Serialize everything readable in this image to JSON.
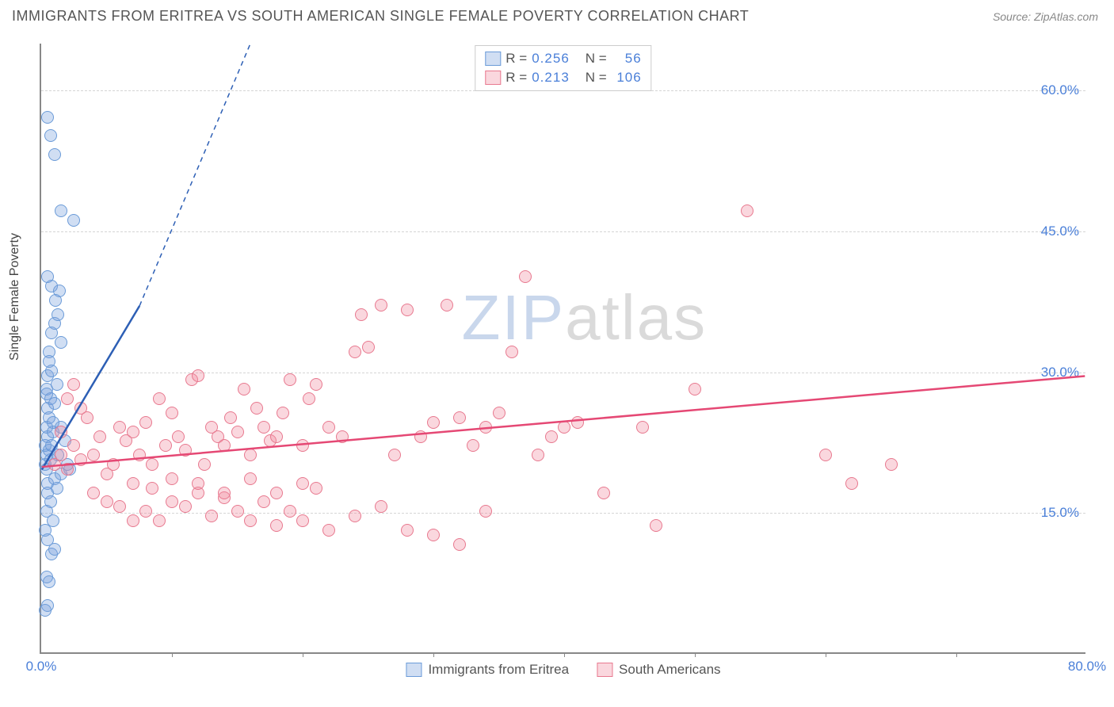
{
  "header": {
    "title": "IMMIGRANTS FROM ERITREA VS SOUTH AMERICAN SINGLE FEMALE POVERTY CORRELATION CHART",
    "source": "Source: ZipAtlas.com"
  },
  "chart": {
    "type": "scatter",
    "ylabel": "Single Female Poverty",
    "xlim": [
      0,
      80
    ],
    "ylim": [
      0,
      65
    ],
    "xticks": [
      {
        "v": 0,
        "label": "0.0%"
      },
      {
        "v": 80,
        "label": "80.0%"
      }
    ],
    "xtick_marks": [
      10,
      20,
      30,
      40,
      50,
      60,
      70
    ],
    "yticks": [
      {
        "v": 15,
        "label": "15.0%"
      },
      {
        "v": 30,
        "label": "30.0%"
      },
      {
        "v": 45,
        "label": "45.0%"
      },
      {
        "v": 60,
        "label": "60.0%"
      }
    ],
    "grid_color": "#d5d5d5",
    "background_color": "#ffffff",
    "marker_radius": 8,
    "marker_stroke_width": 1.5,
    "series": [
      {
        "id": "eritrea",
        "label": "Immigrants from Eritrea",
        "fill": "rgba(120,160,220,0.35)",
        "stroke": "#6b9bd8",
        "line_color": "#2d5fb5",
        "line_width": 2.5,
        "R": "0.256",
        "N": "56",
        "trend": {
          "x1": 0,
          "y1": 19.5,
          "x2": 7.5,
          "y2": 37,
          "dash_x2": 16,
          "dash_y2": 65
        },
        "points": [
          [
            0.3,
            20
          ],
          [
            0.4,
            21
          ],
          [
            0.5,
            18
          ],
          [
            0.3,
            22
          ],
          [
            0.4,
            19.5
          ],
          [
            0.6,
            21.5
          ],
          [
            0.5,
            23
          ],
          [
            0.7,
            20.5
          ],
          [
            0.4,
            24
          ],
          [
            0.8,
            22
          ],
          [
            0.5,
            26
          ],
          [
            0.6,
            25
          ],
          [
            0.9,
            23.5
          ],
          [
            0.4,
            28
          ],
          [
            0.7,
            27
          ],
          [
            1.0,
            26.5
          ],
          [
            0.5,
            29.5
          ],
          [
            0.8,
            30
          ],
          [
            1.2,
            28.5
          ],
          [
            0.6,
            32
          ],
          [
            1.5,
            33
          ],
          [
            1.0,
            35
          ],
          [
            1.3,
            36
          ],
          [
            0.8,
            39
          ],
          [
            1.4,
            38.5
          ],
          [
            0.5,
            17
          ],
          [
            0.7,
            16
          ],
          [
            0.4,
            15
          ],
          [
            1.0,
            18.5
          ],
          [
            1.2,
            17.5
          ],
          [
            1.5,
            19
          ],
          [
            0.9,
            14
          ],
          [
            1.3,
            21
          ],
          [
            2.0,
            20
          ],
          [
            1.8,
            22.5
          ],
          [
            2.2,
            19.5
          ],
          [
            0.3,
            13
          ],
          [
            0.5,
            12
          ],
          [
            0.8,
            10.5
          ],
          [
            1.0,
            11
          ],
          [
            1.5,
            24
          ],
          [
            0.4,
            8
          ],
          [
            0.6,
            7.5
          ],
          [
            0.5,
            5
          ],
          [
            0.3,
            4.5
          ],
          [
            0.7,
            55
          ],
          [
            0.5,
            57
          ],
          [
            1.0,
            53
          ],
          [
            1.5,
            47
          ],
          [
            2.5,
            46
          ],
          [
            0.4,
            27.5
          ],
          [
            0.6,
            31
          ],
          [
            0.8,
            34
          ],
          [
            1.1,
            37.5
          ],
          [
            0.5,
            40
          ],
          [
            0.9,
            24.5
          ]
        ]
      },
      {
        "id": "south_american",
        "label": "South Americans",
        "fill": "rgba(240,140,160,0.35)",
        "stroke": "#e8798f",
        "line_color": "#e54874",
        "line_width": 2.5,
        "R": "0.213",
        "N": "106",
        "trend": {
          "x1": 0,
          "y1": 19.8,
          "x2": 80,
          "y2": 29.5
        },
        "points": [
          [
            1,
            20
          ],
          [
            1.5,
            21
          ],
          [
            2,
            19.5
          ],
          [
            2.5,
            22
          ],
          [
            3,
            20.5
          ],
          [
            3.5,
            25
          ],
          [
            4,
            21
          ],
          [
            4.5,
            23
          ],
          [
            5,
            19
          ],
          [
            5.5,
            20
          ],
          [
            6,
            24
          ],
          [
            6.5,
            22.5
          ],
          [
            7,
            23.5
          ],
          [
            7.5,
            21
          ],
          [
            8,
            24.5
          ],
          [
            8.5,
            20
          ],
          [
            9,
            27
          ],
          [
            9.5,
            22
          ],
          [
            10,
            25.5
          ],
          [
            10.5,
            23
          ],
          [
            11,
            21.5
          ],
          [
            11.5,
            29
          ],
          [
            12,
            29.5
          ],
          [
            12.5,
            20
          ],
          [
            13,
            24
          ],
          [
            13.5,
            23
          ],
          [
            14,
            22
          ],
          [
            14.5,
            25
          ],
          [
            15,
            23.5
          ],
          [
            15.5,
            28
          ],
          [
            16,
            21
          ],
          [
            16.5,
            26
          ],
          [
            17,
            24
          ],
          [
            17.5,
            22.5
          ],
          [
            18,
            23
          ],
          [
            18.5,
            25.5
          ],
          [
            19,
            29
          ],
          [
            20,
            22
          ],
          [
            20.5,
            27
          ],
          [
            21,
            28.5
          ],
          [
            22,
            24
          ],
          [
            23,
            23
          ],
          [
            24,
            32
          ],
          [
            24.5,
            36
          ],
          [
            25,
            32.5
          ],
          [
            26,
            37
          ],
          [
            27,
            21
          ],
          [
            28,
            36.5
          ],
          [
            29,
            23
          ],
          [
            30,
            24.5
          ],
          [
            31,
            37
          ],
          [
            32,
            25
          ],
          [
            33,
            22
          ],
          [
            34,
            24
          ],
          [
            35,
            25.5
          ],
          [
            36,
            32
          ],
          [
            37,
            40
          ],
          [
            38,
            21
          ],
          [
            39,
            23
          ],
          [
            40,
            24
          ],
          [
            41,
            24.5
          ],
          [
            8,
            15
          ],
          [
            9,
            14
          ],
          [
            10,
            16
          ],
          [
            11,
            15.5
          ],
          [
            12,
            17
          ],
          [
            13,
            14.5
          ],
          [
            14,
            16.5
          ],
          [
            15,
            15
          ],
          [
            16,
            14
          ],
          [
            17,
            16
          ],
          [
            18,
            13.5
          ],
          [
            19,
            15
          ],
          [
            20,
            14
          ],
          [
            21,
            17.5
          ],
          [
            22,
            13
          ],
          [
            24,
            14.5
          ],
          [
            26,
            15.5
          ],
          [
            28,
            13
          ],
          [
            30,
            12.5
          ],
          [
            32,
            11.5
          ],
          [
            34,
            15
          ],
          [
            7,
            18
          ],
          [
            8.5,
            17.5
          ],
          [
            10,
            18.5
          ],
          [
            12,
            18
          ],
          [
            14,
            17
          ],
          [
            16,
            18.5
          ],
          [
            18,
            17
          ],
          [
            20,
            18
          ],
          [
            43,
            17
          ],
          [
            46,
            24
          ],
          [
            47,
            13.5
          ],
          [
            50,
            28
          ],
          [
            54,
            47
          ],
          [
            60,
            21
          ],
          [
            62,
            18
          ],
          [
            65,
            20
          ],
          [
            2,
            27
          ],
          [
            2.5,
            28.5
          ],
          [
            3,
            26
          ],
          [
            1.5,
            23.5
          ],
          [
            4,
            17
          ],
          [
            5,
            16
          ],
          [
            6,
            15.5
          ],
          [
            7,
            14
          ]
        ]
      }
    ],
    "legend_top": {
      "r_label": "R =",
      "n_label": "N ="
    },
    "watermark": {
      "bold": "ZIP",
      "rest": "atlas"
    }
  }
}
